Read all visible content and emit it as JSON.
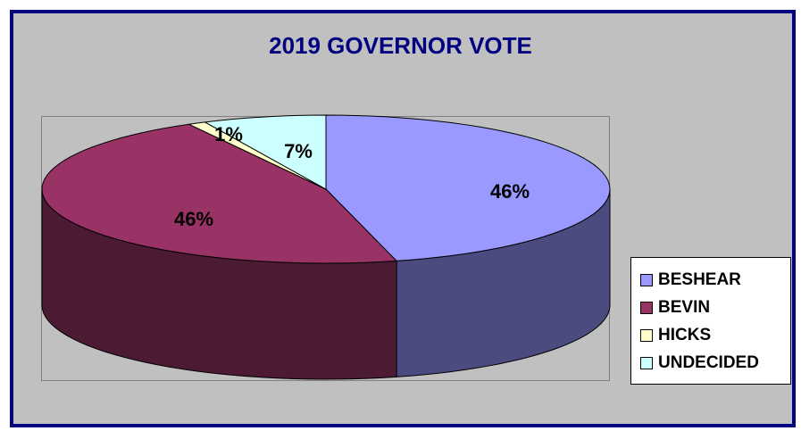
{
  "chart_data": {
    "type": "pie",
    "title": "2019 GOVERNOR VOTE",
    "style": "3d",
    "legend_position": "right",
    "slices": [
      {
        "name": "BESHEAR",
        "value": 46,
        "label": "46%",
        "color": "#9999ff",
        "side_color": "#4b4b80"
      },
      {
        "name": "BEVIN",
        "value": 46,
        "label": "46%",
        "color": "#993366",
        "side_color": "#4d1a33"
      },
      {
        "name": "HICKS",
        "value": 1,
        "label": "1%",
        "color": "#ffffcc",
        "side_color": "#808066"
      },
      {
        "name": "UNDECIDED",
        "value": 7,
        "label": "7%",
        "color": "#ccffff",
        "side_color": "#668080"
      }
    ]
  },
  "colors": {
    "background": "#c0c0c0",
    "border": "#000080",
    "title": "#000080"
  }
}
